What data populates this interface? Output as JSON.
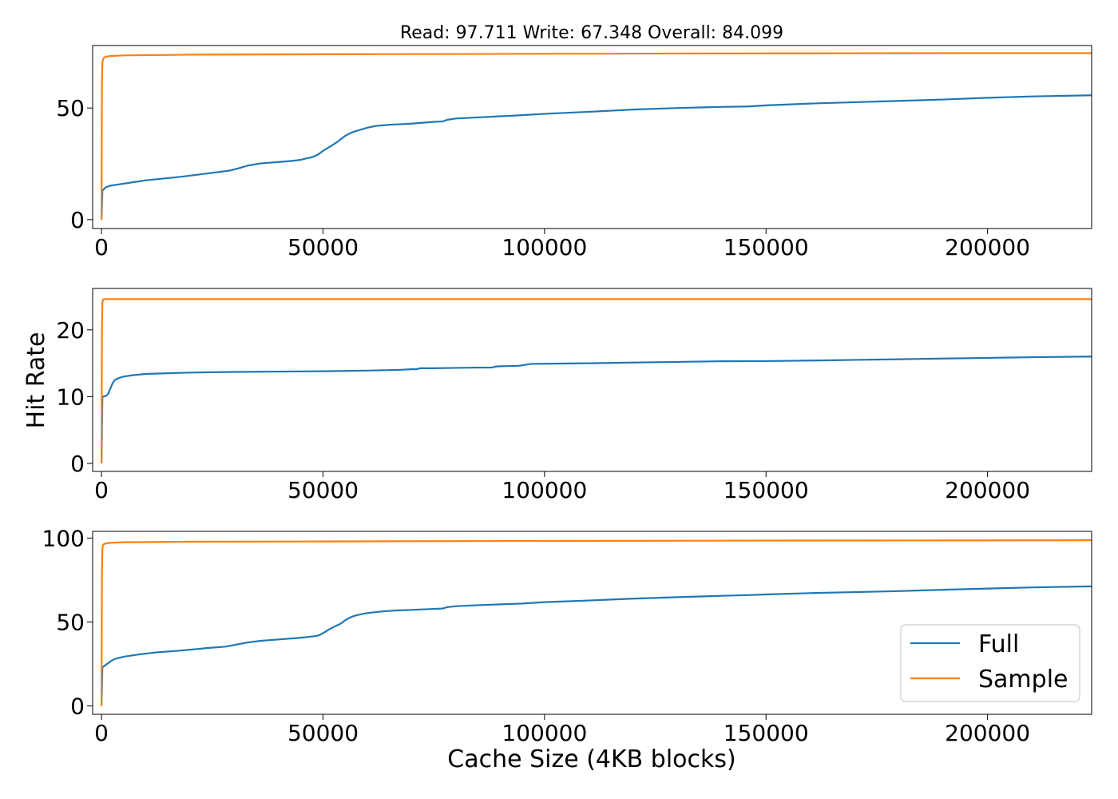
{
  "figure": {
    "title": "Read: 97.711 Write: 67.348 Overall: 84.099",
    "ylabel": "Hit Rate",
    "xlabel": "Cache Size (4KB blocks)"
  },
  "colors": {
    "Full": "#1f77b4",
    "Sample": "#ff7f0e"
  },
  "legend": {
    "entries": [
      "Full",
      "Sample"
    ],
    "placement": "lower right",
    "panel": 3
  },
  "chart_data": [
    {
      "type": "line",
      "title": "Read: 97.711 Write: 67.348 Overall: 84.099",
      "xlabel": "",
      "ylabel": "",
      "xlim": [
        -2000,
        223500
      ],
      "ylim": [
        -4,
        78
      ],
      "xticks": [
        0,
        50000,
        100000,
        150000,
        200000
      ],
      "yticks": [
        0,
        50
      ],
      "grid": false,
      "series": [
        {
          "name": "Full",
          "x": [
            0,
            200,
            1000,
            2000,
            4000,
            6000,
            8000,
            10000,
            14000,
            18000,
            22000,
            26000,
            29000,
            31000,
            33000,
            36000,
            40000,
            43000,
            45000,
            46000,
            47000,
            48000,
            49000,
            50000,
            51000,
            52000,
            53000,
            54000,
            55000,
            56000,
            57000,
            58000,
            60000,
            62000,
            65000,
            70000,
            75000,
            77000,
            78000,
            80000,
            85000,
            90000,
            95000,
            100000,
            110000,
            120000,
            130000,
            140000,
            146000,
            150000,
            160000,
            170000,
            180000,
            190000,
            200000,
            210000,
            223500
          ],
          "y": [
            0,
            13,
            14.5,
            15.2,
            15.8,
            16.4,
            17,
            17.6,
            18.4,
            19.2,
            20.2,
            21.2,
            22,
            23,
            24.2,
            25.2,
            25.8,
            26.3,
            26.8,
            27.3,
            27.7,
            28.3,
            29.3,
            30.8,
            32,
            33.2,
            34.5,
            36,
            37.5,
            38.6,
            39.4,
            40,
            41.2,
            42,
            42.5,
            43,
            43.8,
            44,
            44.7,
            45.3,
            45.8,
            46.3,
            46.8,
            47.4,
            48.3,
            49.3,
            50,
            50.5,
            50.7,
            51.2,
            52,
            52.6,
            53.2,
            53.8,
            54.6,
            55.2,
            55.7
          ]
        },
        {
          "name": "Sample",
          "x": [
            0,
            100,
            200,
            300,
            500,
            1000,
            2000,
            5000,
            20000,
            50000,
            100000,
            150000,
            200000,
            223500
          ],
          "y": [
            0,
            62,
            70,
            71.5,
            72.5,
            73,
            73.3,
            73.6,
            73.9,
            74.1,
            74.3,
            74.5,
            74.6,
            74.6
          ]
        }
      ]
    },
    {
      "type": "line",
      "title": "",
      "xlabel": "",
      "ylabel": "Hit Rate",
      "xlim": [
        -2000,
        223500
      ],
      "ylim": [
        -1.2,
        26.2
      ],
      "xticks": [
        0,
        50000,
        100000,
        150000,
        200000
      ],
      "yticks": [
        0,
        10,
        20
      ],
      "grid": false,
      "series": [
        {
          "name": "Full",
          "x": [
            0,
            200,
            300,
            1000,
            1500,
            2000,
            2500,
            3000,
            4000,
            5000,
            7000,
            10000,
            15000,
            20000,
            30000,
            40000,
            50000,
            60000,
            67000,
            70000,
            71000,
            72000,
            75000,
            80000,
            85000,
            88000,
            89000,
            90000,
            94000,
            96000,
            97000,
            100000,
            110000,
            120000,
            130000,
            140000,
            150000,
            160000,
            165000,
            170000,
            180000,
            190000,
            200000,
            210000,
            223500
          ],
          "y": [
            0,
            9.8,
            10,
            10.1,
            10.4,
            11.2,
            12,
            12.5,
            12.8,
            13,
            13.2,
            13.4,
            13.5,
            13.6,
            13.7,
            13.75,
            13.8,
            13.9,
            14,
            14.1,
            14.1,
            14.25,
            14.25,
            14.3,
            14.35,
            14.35,
            14.5,
            14.55,
            14.6,
            14.8,
            14.9,
            14.92,
            15,
            15.1,
            15.2,
            15.3,
            15.32,
            15.4,
            15.45,
            15.5,
            15.6,
            15.7,
            15.8,
            15.9,
            16
          ]
        },
        {
          "name": "Sample",
          "x": [
            0,
            100,
            200,
            300,
            500,
            1000,
            10000,
            50000,
            100000,
            150000,
            200000,
            223500
          ],
          "y": [
            0,
            20,
            24,
            24.5,
            24.6,
            24.6,
            24.6,
            24.6,
            24.6,
            24.6,
            24.6,
            24.6
          ]
        }
      ]
    },
    {
      "type": "line",
      "title": "",
      "xlabel": "Cache Size (4KB blocks)",
      "ylabel": "",
      "xlim": [
        -2000,
        223500
      ],
      "ylim": [
        -5,
        104
      ],
      "xticks": [
        0,
        50000,
        100000,
        150000,
        200000
      ],
      "yticks": [
        0,
        50,
        100
      ],
      "grid": false,
      "series": [
        {
          "name": "Full",
          "x": [
            0,
            200,
            1000,
            2000,
            3000,
            5000,
            8000,
            12000,
            18000,
            24000,
            28000,
            30000,
            33000,
            36000,
            40000,
            44000,
            46000,
            48000,
            49000,
            50000,
            51000,
            52000,
            53000,
            54000,
            55000,
            56000,
            57000,
            58000,
            60000,
            63000,
            66000,
            70000,
            75000,
            77000,
            78000,
            80000,
            85000,
            90000,
            95000,
            100000,
            110000,
            120000,
            130000,
            140000,
            146000,
            150000,
            160000,
            170000,
            180000,
            190000,
            200000,
            210000,
            223500
          ],
          "y": [
            0,
            23,
            24.5,
            26.5,
            28,
            29.3,
            30.5,
            31.8,
            33,
            34.5,
            35.3,
            36.3,
            37.8,
            38.8,
            39.6,
            40.4,
            40.9,
            41.5,
            42,
            43.3,
            45,
            46.5,
            47.8,
            49,
            51,
            52.5,
            53.6,
            54.3,
            55.3,
            56.2,
            56.8,
            57.2,
            57.8,
            58,
            58.8,
            59.4,
            60,
            60.5,
            61,
            61.8,
            62.8,
            63.9,
            64.8,
            65.6,
            66,
            66.4,
            67.2,
            67.8,
            68.4,
            69.2,
            69.9,
            70.6,
            71.2
          ]
        },
        {
          "name": "Sample",
          "x": [
            0,
            100,
            200,
            300,
            500,
            1000,
            2000,
            5000,
            20000,
            50000,
            100000,
            150000,
            200000,
            223500
          ],
          "y": [
            0,
            80,
            93,
            95.5,
            96.3,
            96.8,
            97.2,
            97.5,
            97.8,
            98,
            98.3,
            98.5,
            98.6,
            98.7
          ]
        }
      ]
    }
  ]
}
